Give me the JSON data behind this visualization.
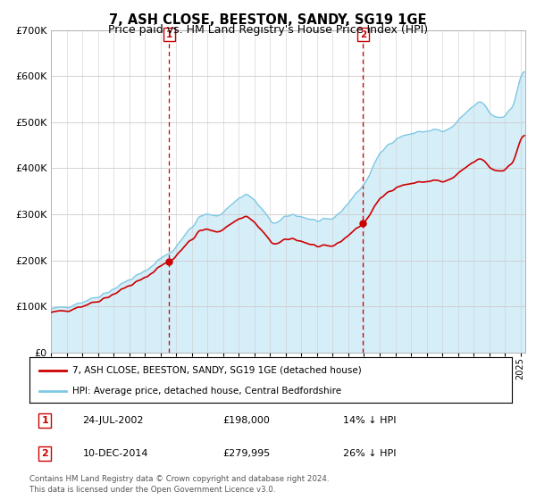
{
  "title": "7, ASH CLOSE, BEESTON, SANDY, SG19 1GE",
  "subtitle": "Price paid vs. HM Land Registry's House Price Index (HPI)",
  "legend_line1": "7, ASH CLOSE, BEESTON, SANDY, SG19 1GE (detached house)",
  "legend_line2": "HPI: Average price, detached house, Central Bedfordshire",
  "footnote": "Contains HM Land Registry data © Crown copyright and database right 2024.\nThis data is licensed under the Open Government Licence v3.0.",
  "sale1_date": "24-JUL-2002",
  "sale1_price": 198000,
  "sale1_x": 2002.55,
  "sale2_date": "10-DEC-2014",
  "sale2_price": 279995,
  "sale2_x": 2014.94,
  "ylim": [
    0,
    700000
  ],
  "yticks": [
    0,
    100000,
    200000,
    300000,
    400000,
    500000,
    600000,
    700000
  ],
  "ytick_labels": [
    "£0",
    "£100K",
    "£200K",
    "£300K",
    "£400K",
    "£500K",
    "£600K",
    "£700K"
  ],
  "xlim_min": 1995.0,
  "xlim_max": 2025.3,
  "hpi_color": "#7ec8e3",
  "hpi_fill_color": "#d6eef8",
  "price_color": "#cc0000",
  "vline_color": "#cc0000",
  "title_fontsize": 10.5,
  "subtitle_fontsize": 9,
  "tick_fontsize": 7,
  "ytick_fontsize": 8,
  "background_color": "#ffffff",
  "grid_color": "#cccccc"
}
